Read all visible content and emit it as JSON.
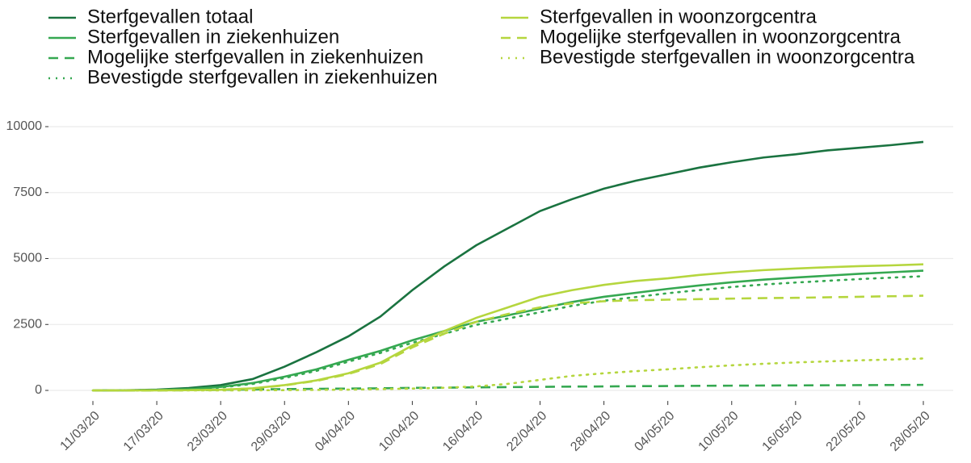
{
  "chart_data": {
    "type": "line",
    "categories": [
      "11/03/20",
      null,
      "17/03/20",
      null,
      "23/03/20",
      null,
      "29/03/20",
      null,
      "04/04/20",
      null,
      "10/04/20",
      null,
      "16/04/20",
      null,
      "22/04/20",
      null,
      "28/04/20",
      null,
      "04/05/20",
      null,
      "10/05/20",
      null,
      "16/05/20",
      null,
      "22/05/20",
      null,
      "28/05/20"
    ],
    "series": [
      {
        "name": "Sterfgevallen totaal",
        "color": "#1a7340",
        "dash": "solid",
        "values": [
          0,
          5,
          30,
          90,
          200,
          430,
          900,
          1450,
          2050,
          2800,
          3800,
          4700,
          5500,
          6150,
          6800,
          7250,
          7650,
          7950,
          8200,
          8450,
          8650,
          8830,
          8950,
          9100,
          9200,
          9300,
          9420
        ]
      },
      {
        "name": "Sterfgevallen in ziekenhuizen",
        "color": "#35a851",
        "dash": "solid",
        "values": [
          0,
          3,
          15,
          50,
          130,
          280,
          520,
          800,
          1160,
          1500,
          1900,
          2250,
          2600,
          2850,
          3100,
          3350,
          3550,
          3700,
          3850,
          3980,
          4100,
          4200,
          4280,
          4350,
          4420,
          4480,
          4540
        ]
      },
      {
        "name": "Mogelijke sterfgevallen in ziekenhuizen",
        "color": "#35a851",
        "dash": "dashed",
        "values": [
          0,
          0,
          2,
          8,
          20,
          35,
          50,
          60,
          70,
          80,
          95,
          105,
          115,
          125,
          135,
          145,
          150,
          160,
          165,
          175,
          180,
          185,
          190,
          195,
          200,
          205,
          210
        ]
      },
      {
        "name": "Bevestigde sterfgevallen in ziekenhuizen",
        "color": "#35a851",
        "dash": "dotted",
        "values": [
          0,
          3,
          13,
          42,
          110,
          245,
          470,
          740,
          1090,
          1420,
          1805,
          2145,
          2485,
          2725,
          2965,
          3205,
          3400,
          3540,
          3685,
          3805,
          3920,
          4015,
          4090,
          4155,
          4220,
          4275,
          4330
        ]
      },
      {
        "name": "Sterfgevallen in woonzorgcentra",
        "color": "#b5d63e",
        "dash": "solid",
        "values": [
          0,
          0,
          2,
          8,
          25,
          80,
          200,
          380,
          650,
          1050,
          1700,
          2250,
          2750,
          3150,
          3550,
          3800,
          4000,
          4150,
          4250,
          4380,
          4480,
          4560,
          4620,
          4670,
          4710,
          4740,
          4780
        ]
      },
      {
        "name": "Mogelijke sterfgevallen in woonzorgcentra",
        "color": "#b5d63e",
        "dash": "dashed",
        "values": [
          0,
          0,
          2,
          8,
          25,
          75,
          190,
          360,
          620,
          1000,
          1630,
          2150,
          2600,
          2900,
          3150,
          3300,
          3380,
          3420,
          3440,
          3460,
          3480,
          3500,
          3510,
          3530,
          3550,
          3570,
          3590
        ]
      },
      {
        "name": "Bevestigde sterfgevallen in woonzorgcentra",
        "color": "#b5d63e",
        "dash": "dotted",
        "values": [
          0,
          0,
          0,
          0,
          0,
          5,
          10,
          20,
          30,
          50,
          70,
          100,
          150,
          250,
          400,
          550,
          650,
          730,
          800,
          880,
          950,
          1010,
          1060,
          1100,
          1140,
          1170,
          1210
        ]
      }
    ],
    "ylim": [
      -400,
      10500
    ],
    "yticks": [
      0,
      2500,
      5000,
      7500,
      10000
    ],
    "grid": true
  }
}
